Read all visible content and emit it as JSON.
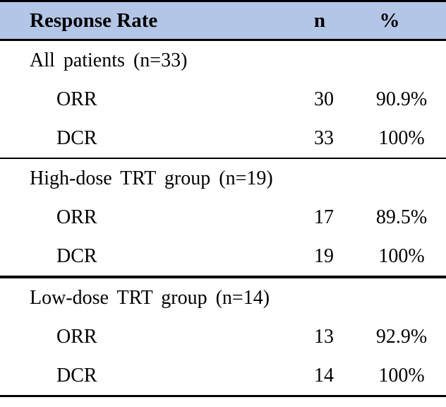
{
  "table": {
    "header": {
      "response_rate": "Response Rate",
      "n": "n",
      "percent": "%"
    },
    "sections": [
      {
        "title": "All patients (n=33)",
        "rows": [
          {
            "label": "ORR",
            "n": "30",
            "percent": "90.9%"
          },
          {
            "label": "DCR",
            "n": "33",
            "percent": "100%"
          }
        ]
      },
      {
        "title": "High-dose TRT group (n=19)",
        "rows": [
          {
            "label": "ORR",
            "n": "17",
            "percent": "89.5%"
          },
          {
            "label": "DCR",
            "n": "19",
            "percent": "100%"
          }
        ]
      },
      {
        "title": "Low-dose TRT group (n=14)",
        "rows": [
          {
            "label": "ORR",
            "n": "13",
            "percent": "92.9%"
          },
          {
            "label": "DCR",
            "n": "14",
            "percent": "100%"
          }
        ]
      }
    ],
    "colors": {
      "header_bg": "#b4c6e7",
      "border": "#000000",
      "text": "#000000",
      "background": "#ffffff"
    }
  }
}
